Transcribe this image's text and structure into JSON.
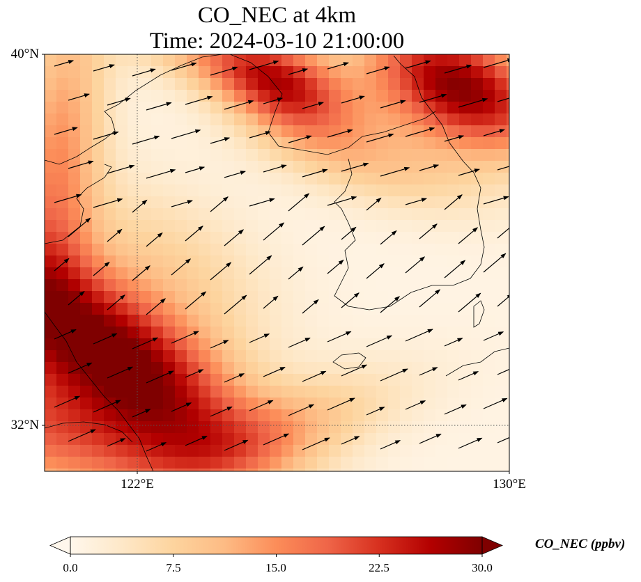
{
  "title_line1": "CO_NEC at 4km",
  "title_line2": "Time: 2024-03-10 21:00:00",
  "lat_labels": [
    "40°N",
    "32°N"
  ],
  "lon_labels": [
    "122°E",
    "130°E"
  ],
  "colorbar": {
    "label": "CO_NEC (ppbv)",
    "ticks": [
      "0.0",
      "7.5",
      "15.0",
      "22.5",
      "30.0"
    ],
    "min": 0,
    "max": 30,
    "extend": "both",
    "colormap": [
      "#fff7ec",
      "#fee8c8",
      "#fdd49e",
      "#fdbb84",
      "#fc8d59",
      "#ef6548",
      "#d7301f",
      "#b30000",
      "#7f0000"
    ]
  },
  "map_extent": {
    "lon": [
      120,
      130
    ],
    "lat": [
      31,
      40
    ]
  },
  "gridlines": {
    "lon": [
      122
    ],
    "lat": [
      32
    ]
  }
}
